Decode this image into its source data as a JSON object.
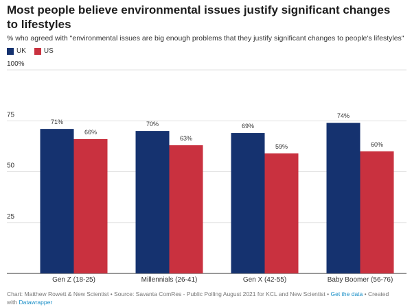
{
  "chart_data": {
    "type": "grouped_bar",
    "title": "Most people believe environmental issues justify significant changes to lifestyles",
    "subtitle": "% who agreed with \"environmental issues are big enough problems that they justify significant changes to people's lifestyles\"",
    "categories": [
      "Gen Z (18-25)",
      "Millennials (26-41)",
      "Gen X (42-55)",
      "Baby Boomer (56-76)"
    ],
    "series": [
      {
        "name": "UK",
        "color": "#15326f",
        "values": [
          71,
          70,
          69,
          74
        ],
        "value_labels": [
          "71%",
          "70%",
          "69%",
          "74%"
        ]
      },
      {
        "name": "US",
        "color": "#c9313f",
        "values": [
          66,
          63,
          59,
          60
        ],
        "value_labels": [
          "66%",
          "63%",
          "59%",
          "60%"
        ]
      }
    ],
    "ylim": [
      0,
      100
    ],
    "yticks": [
      25,
      50,
      75,
      {
        "value": 100,
        "label": "100%"
      }
    ],
    "grid": true
  },
  "footer": {
    "credit": "Chart: Matthew Rowett & New Scientist • Source: Savanta ComRes - Public Polling August 2021 for KCL and New Scientist •",
    "data_link": "Get the data",
    "created": "• Created with",
    "brand_link": "Datawrapper"
  }
}
